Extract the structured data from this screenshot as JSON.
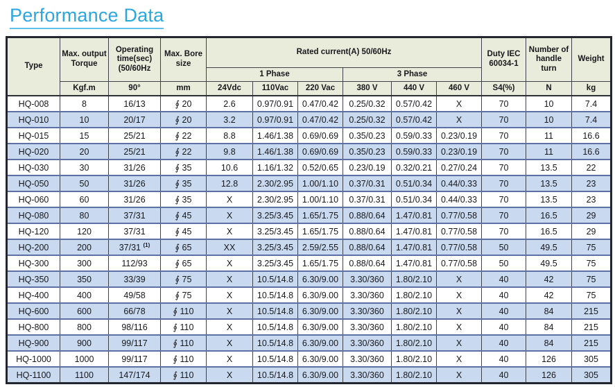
{
  "page_title": "Performance Data",
  "colors": {
    "title_accent": "#2BA6DE",
    "header_bg": "#EAECDB",
    "row_bg": "#FFFFFF",
    "row_alt_bg": "#C9D9EF",
    "grid_dark": "#3E4147",
    "row_divider": "#5C70A3"
  },
  "chart_data": {
    "type": "table",
    "title": "Performance Data",
    "headers": {
      "type": "Type",
      "torque": "Max. output Torque",
      "op_time": "Operating time(sec) (50/60Hz",
      "bore": "Max. Bore size",
      "rated_current": "Rated current(A) 50/60Hz",
      "phase1": "1 Phase",
      "phase3": "3 Phase",
      "duty": "Duty IEC 60034-1",
      "handle": "Number of handle turn",
      "weight": "Weight"
    },
    "column_keys": [
      "type",
      "torque",
      "op-time",
      "bore",
      "24vdc",
      "110vac",
      "220vac",
      "380v",
      "440v",
      "460v",
      "s4",
      "n",
      "kg"
    ],
    "units": [
      "Kgf.m",
      "90°",
      "mm",
      "24Vdc",
      "110Vac",
      "220 Vac",
      "380 V",
      "440 V",
      "460 V",
      "S4(%)",
      "N",
      "kg"
    ],
    "rows": [
      [
        "HQ-008",
        "8",
        "16/13",
        "∮ 20",
        "2.6",
        "0.97/0.91",
        "0.47/0.42",
        "0.25/0.32",
        "0.57/0.42",
        "X",
        "70",
        "10",
        "7.4"
      ],
      [
        "HQ-010",
        "10",
        "20/17",
        "∮ 20",
        "3.2",
        "0.97/0.91",
        "0.47/0.42",
        "0.25/0.32",
        "0.57/0.42",
        "X",
        "70",
        "10",
        "7.4"
      ],
      [
        "HQ-015",
        "15",
        "25/21",
        "∮ 22",
        "8.8",
        "1.46/1.38",
        "0.69/0.69",
        "0.35/0.23",
        "0.59/0.33",
        "0.23/0.19",
        "70",
        "11",
        "16.6"
      ],
      [
        "HQ-020",
        "20",
        "25/21",
        "∮ 22",
        "9.8",
        "1.46/1.38",
        "0.69/0.69",
        "0.35/0.23",
        "0.59/0.33",
        "0.23/0.19",
        "70",
        "11",
        "16.6"
      ],
      [
        "HQ-030",
        "30",
        "31/26",
        "∮ 35",
        "10.6",
        "1.16/1.32",
        "0.52/0.65",
        "0.23/0.19",
        "0.32/0.21",
        "0.27/0.24",
        "70",
        "13.5",
        "22"
      ],
      [
        "HQ-050",
        "50",
        "31/26",
        "∮ 35",
        "12.8",
        "2.30/2.95",
        "1.00/1.10",
        "0.37/0.31",
        "0.51/0.34",
        "0.44/0.33",
        "70",
        "13.5",
        "23"
      ],
      [
        "HQ-060",
        "60",
        "31/26",
        "∮ 35",
        "X",
        "2.30/2.95",
        "1.00/1.10",
        "0.37/0.31",
        "0.51/0.34",
        "0.44/0.33",
        "70",
        "13.5",
        "23"
      ],
      [
        "HQ-080",
        "80",
        "37/31",
        "∮ 45",
        "X",
        "3.25/3.45",
        "1.65/1.75",
        "0.88/0.64",
        "1.47/0.81",
        "0.77/0.58",
        "70",
        "16.5",
        "29"
      ],
      [
        "HQ-120",
        "120",
        "37/31",
        "∮ 45",
        "X",
        "3.25/3.45",
        "1.65/1.75",
        "0.88/0.64",
        "1.47/0.81",
        "0.77/0.58",
        "70",
        "16.5",
        "29"
      ],
      [
        "HQ-200",
        "200",
        "37/31 (1)",
        "∮ 65",
        "XX",
        "3.25/3.45",
        "2.59/2.55",
        "0.88/0.64",
        "1.47/0.81",
        "0.77/0.58",
        "50",
        "49.5",
        "75"
      ],
      [
        "HQ-300",
        "300",
        "112/93",
        "∮ 65",
        "X",
        "3.25/3.45",
        "1.65/1.75",
        "0.88/0.64",
        "1.47/0.81",
        "0.77/0.58",
        "50",
        "49.5",
        "75"
      ],
      [
        "HQ-350",
        "350",
        "33/39",
        "∮ 75",
        "X",
        "10.5/14.8",
        "6.30/9.00",
        "3.30/360",
        "1.80/2.10",
        "X",
        "40",
        "42",
        "75"
      ],
      [
        "HQ-400",
        "400",
        "49/58",
        "∮ 75",
        "X",
        "10.5/14.8",
        "6.30/9.00",
        "3.30/360",
        "1.80/2.10",
        "X",
        "40",
        "42",
        "75"
      ],
      [
        "HQ-600",
        "600",
        "66/78",
        "∮ 110",
        "X",
        "10.5/14.8",
        "6.30/9.00",
        "3.30/360",
        "1.80/2.10",
        "X",
        "40",
        "84",
        "215"
      ],
      [
        "HQ-800",
        "800",
        "98/116",
        "∮ 110",
        "X",
        "10.5/14.8",
        "6.30/9.00",
        "3.30/360",
        "1.80/2.10",
        "X",
        "40",
        "84",
        "215"
      ],
      [
        "HQ-900",
        "900",
        "99/117",
        "∮ 110",
        "X",
        "10.5/14.8",
        "6.30/9.00",
        "3.30/360",
        "1.80/2.10",
        "X",
        "40",
        "84",
        "215"
      ],
      [
        "HQ-1000",
        "1000",
        "99/117",
        "∮ 110",
        "X",
        "10.5/14.8",
        "6.30/9.00",
        "3.30/360",
        "1.80/2.10",
        "X",
        "40",
        "126",
        "305"
      ],
      [
        "HQ-1100",
        "1100",
        "147/174",
        "∮ 110",
        "X",
        "10.5/14.8",
        "6.30/9.00",
        "3.30/360",
        "1.80/2.10",
        "X",
        "40",
        "126",
        "305"
      ]
    ]
  }
}
